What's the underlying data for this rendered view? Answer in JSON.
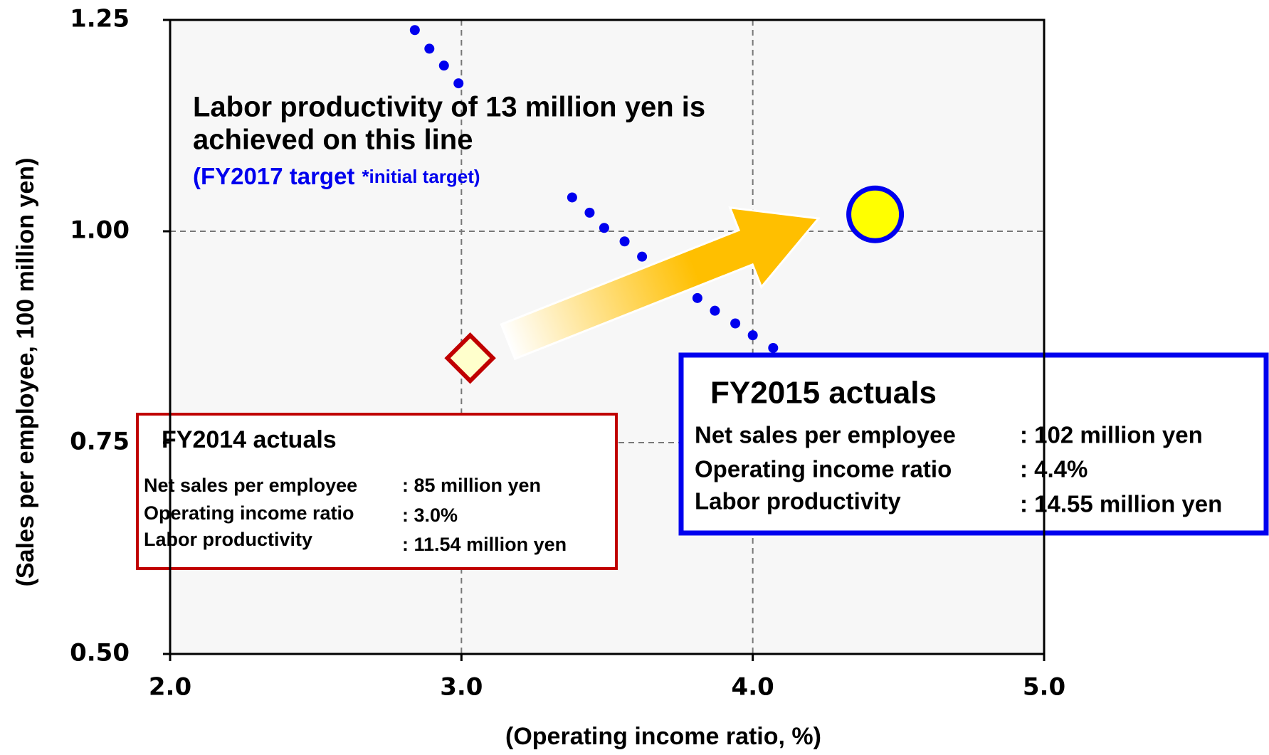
{
  "chart_data": {
    "type": "scatter",
    "xlabel": "(Operating income ratio, %)",
    "ylabel": "(Sales per employee, 100 million yen)",
    "xlim": [
      2,
      5
    ],
    "ylim": [
      0.5,
      1.25
    ],
    "xticks": [
      {
        "value": 2,
        "label": "2.0"
      },
      {
        "value": 3,
        "label": "3.0"
      },
      {
        "value": 4,
        "label": "4.0"
      },
      {
        "value": 5,
        "label": "5.0"
      }
    ],
    "yticks": [
      {
        "value": 0.5,
        "label": "0.50"
      },
      0.75,
      {
        "value": 1,
        "label": "1.00"
      },
      1.25
    ],
    "grid": true,
    "series": [
      {
        "marker": "dot",
        "color": "#0000ee",
        "x": [
          2.84,
          2.89,
          2.94,
          2.99,
          3.38,
          3.44,
          3.49,
          3.56,
          3.62,
          3.81,
          3.87,
          3.94,
          4.0,
          4.07
        ],
        "values": [
          1.238,
          1.216,
          1.196,
          1.175,
          1.04,
          1.022,
          1.004,
          0.988,
          0.97,
          0.921,
          0.906,
          0.891,
          0.877,
          0.862
        ]
      },
      {
        "marker": "diamond",
        "color": "#ffffcc",
        "edgecolor": "#c00000",
        "x": [
          3.03
        ],
        "values": [
          0.85
        ]
      },
      {
        "marker": "circle",
        "color": "#ffff00",
        "edgecolor": "#0000ee",
        "x": [
          4.42
        ],
        "values": [
          1.02
        ]
      }
    ],
    "line_note": {
      "lines": [
        "Labor productivity of 13 million yen is",
        "achieved on this line"
      ],
      "target": "(FY2017 target",
      "target_note": "*initial target)",
      "color": "#0000ee"
    },
    "panels": [
      {
        "title": "FY2014 actuals",
        "border_color": "#c00000",
        "rows": [
          [
            "Net sales per employee",
            ": 85 million yen"
          ],
          [
            "Operating income ratio",
            ": 3.0%"
          ],
          [
            "Labor productivity",
            ": 11.54 million yen"
          ]
        ]
      },
      {
        "title": "FY2015 actuals",
        "border_color": "#0000ee",
        "rows": [
          [
            "Net sales per employee",
            ": 102 million yen"
          ],
          [
            "Operating income ratio",
            ": 4.4%"
          ],
          [
            "Labor productivity",
            ": 14.55 million yen"
          ]
        ]
      }
    ]
  }
}
